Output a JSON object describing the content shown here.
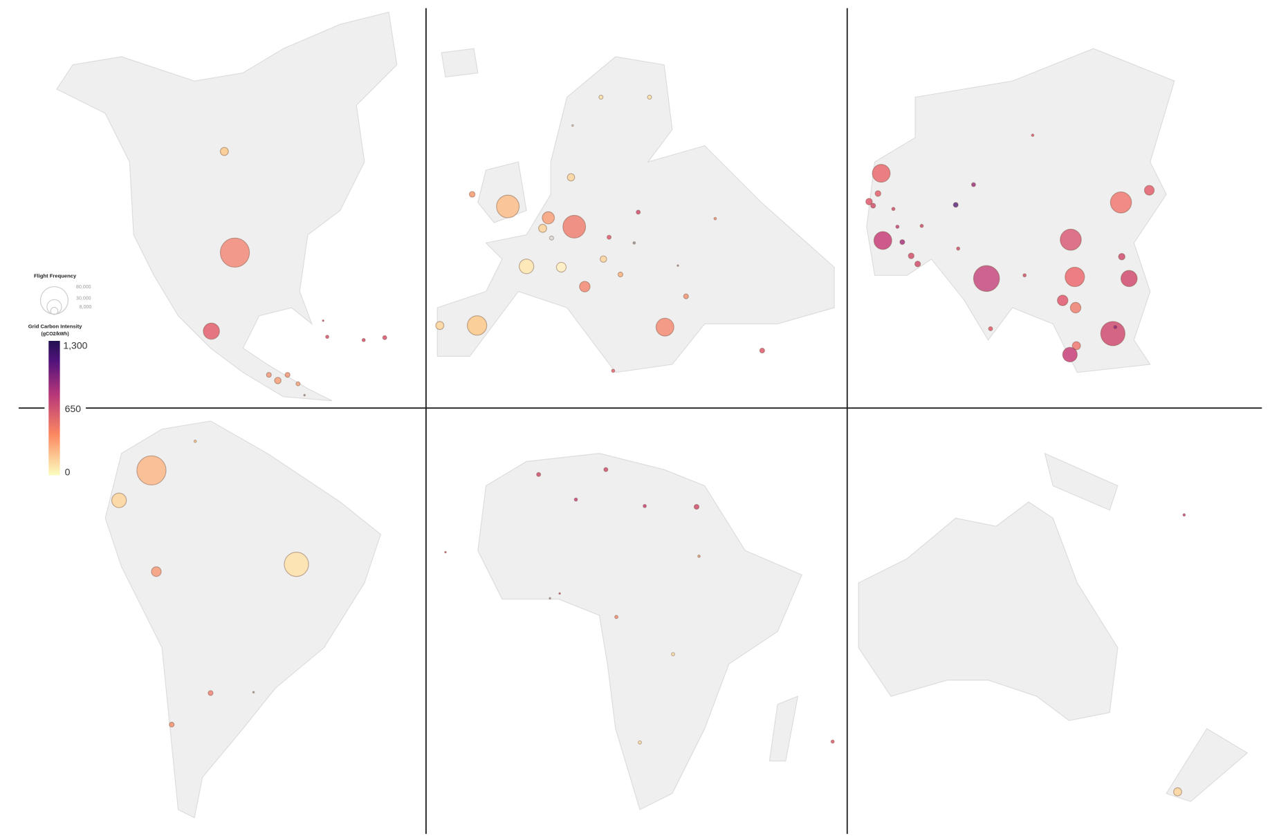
{
  "legend": {
    "size_title": "Flight Frequency",
    "size_labels": [
      "80,000",
      "30,000",
      "8,000"
    ],
    "color_title_line1": "Grid Carbon Intensity",
    "color_title_line2": "(gCO2/kWh)",
    "color_labels": [
      "1,300",
      "650",
      "0"
    ],
    "color_stops": [
      "#fcfdbf",
      "#fc8961",
      "#b73779",
      "#51127c",
      "#221150"
    ]
  },
  "panels": [
    "North America",
    "Europe",
    "Asia",
    "South America",
    "Africa",
    "Oceania"
  ],
  "colors": {
    "land": "#efefef",
    "border": "#dcdcdc",
    "divider": "#222222"
  }
}
